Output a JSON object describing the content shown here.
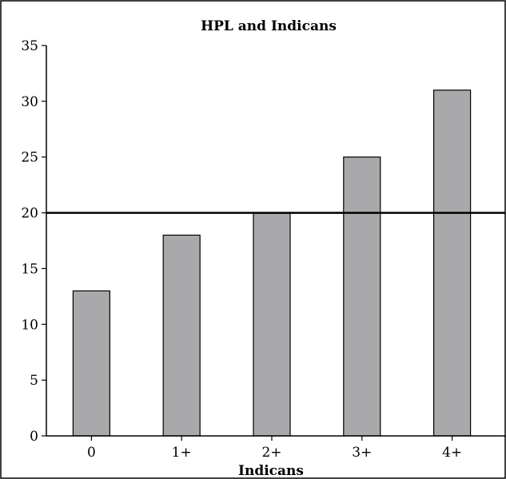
{
  "chart_data": {
    "type": "bar",
    "title": "HPL and Indicans",
    "xlabel": "Indicans",
    "ylabel": "",
    "categories": [
      "0",
      "1+",
      "2+",
      "3+",
      "4+"
    ],
    "values": [
      13,
      18,
      20,
      25,
      31
    ],
    "ylim": [
      0,
      35
    ],
    "yticks": [
      0,
      5,
      10,
      15,
      20,
      25,
      30,
      35
    ],
    "reference_line": 20,
    "grid": false,
    "legend": "none",
    "colors": {
      "bar": "#a9a9ab",
      "line": "#000000"
    }
  }
}
